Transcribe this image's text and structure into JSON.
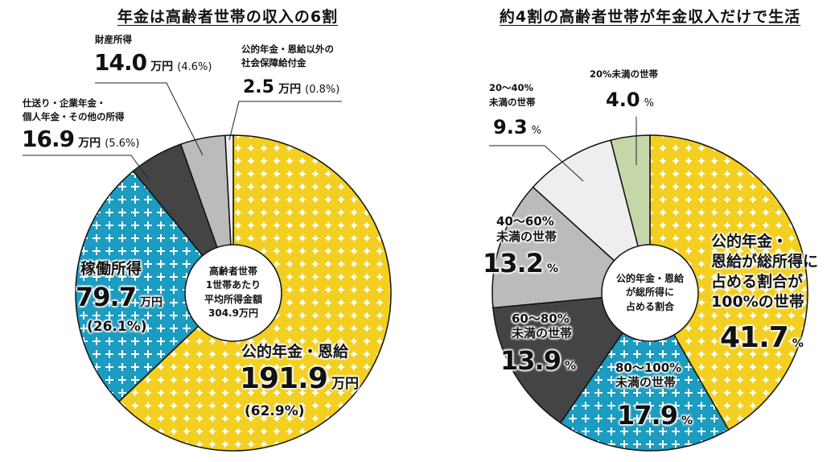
{
  "chart_data": [
    {
      "type": "pie",
      "title": "年金は高齢者世帯の収入の6割",
      "center_label": [
        "高齢者世帯",
        "1世帯あたり",
        "平均所得金額",
        "304.9万円"
      ],
      "unit": "万円",
      "slices": [
        {
          "label": "公的年金・恩給",
          "value": 191.9,
          "percent": "(62.9%)",
          "color": "#f2cf20",
          "pattern": "diamond"
        },
        {
          "label": "稼働所得",
          "value": 79.7,
          "percent": "(26.1%)",
          "color": "#1b9cc0",
          "pattern": "plus"
        },
        {
          "label_lines": [
            "仕送り・企業年金・",
            "個人年金・その他の所得"
          ],
          "value": 16.9,
          "percent": "(5.6%)",
          "color": "#444444"
        },
        {
          "label": "財産所得",
          "value": 14.0,
          "percent": "(4.6%)",
          "color": "#bbbbbb"
        },
        {
          "label_lines": [
            "公的年金・恩給以外の",
            "社会保障給付金"
          ],
          "value": 2.5,
          "percent": "(0.8%)",
          "color": "#eeeeee"
        }
      ]
    },
    {
      "type": "pie",
      "title": "約4割の高齢者世帯が年金収入だけで生活",
      "center_label": [
        "公的年金・恩給",
        "が総所得に",
        "占める割合"
      ],
      "unit": "%",
      "slices": [
        {
          "label_lines": [
            "公的年金・",
            "恩給が総所得に",
            "占める割合が",
            "100%の世帯"
          ],
          "value": 41.7,
          "color": "#f2cf20",
          "pattern": "diamond"
        },
        {
          "label_lines": [
            "80～100%",
            "未満の世帯"
          ],
          "value": 17.9,
          "color": "#1b9cc0",
          "pattern": "plus"
        },
        {
          "label_lines": [
            "60～80%",
            "未満の世帯"
          ],
          "value": 13.9,
          "color": "#444444"
        },
        {
          "label_lines": [
            "40～60%",
            "未満の世帯"
          ],
          "value": 13.2,
          "color": "#bbbbbb"
        },
        {
          "label_lines": [
            "20～40%",
            "未満の世帯"
          ],
          "value": 9.3,
          "color": "#eeeeee"
        },
        {
          "label": "20%未満の世帯",
          "value": 4.0,
          "color": "#c5d6a8"
        }
      ]
    }
  ]
}
